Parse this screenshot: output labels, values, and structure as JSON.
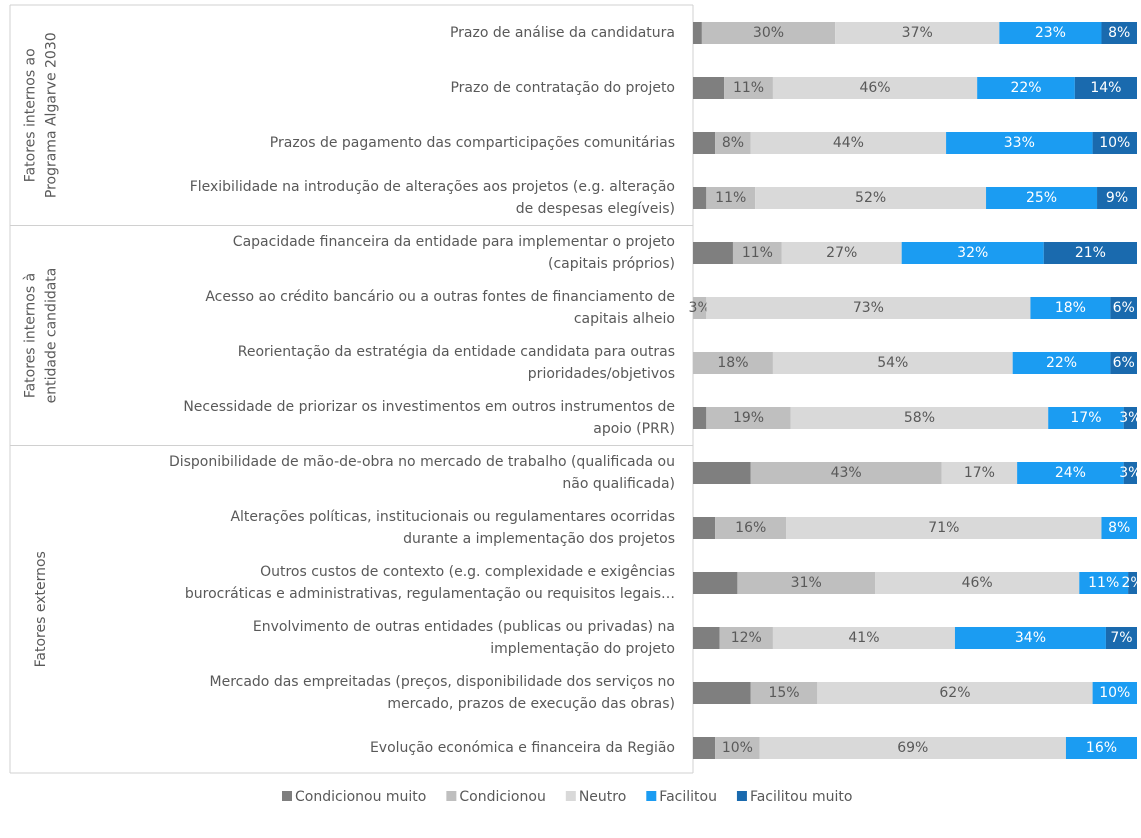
{
  "chart_data": {
    "type": "stacked-bar-horizontal",
    "xlim": [
      0,
      100
    ],
    "groups": [
      [
        "Fatores internos ao",
        "Programa Algarve 2030"
      ],
      [
        "Fatores internos à",
        "entidade candidata"
      ],
      [
        "Fatores externos"
      ]
    ],
    "categories": [
      [
        "Prazo de análise da candidatura"
      ],
      [
        "Prazo de contratação do projeto"
      ],
      [
        "Prazos de pagamento das comparticipações comunitárias"
      ],
      [
        "Flexibilidade na introdução de alterações aos projetos (e.g. alteração",
        "de despesas elegíveis)"
      ],
      [
        "Capacidade financeira da entidade para implementar o projeto",
        "(capitais próprios)"
      ],
      [
        "Acesso ao crédito bancário ou a outras fontes de financiamento de",
        "capitais alheio"
      ],
      [
        "Reorientação da estratégia da entidade candidata para outras",
        "prioridades/objetivos"
      ],
      [
        "Necessidade de priorizar os investimentos em outros instrumentos de",
        "apoio (PRR)"
      ],
      [
        "Disponibilidade de mão-de-obra no mercado de trabalho (qualificada ou",
        "não qualificada)"
      ],
      [
        "Alterações políticas, institucionais ou regulamentares ocorridas",
        "durante a implementação dos projetos"
      ],
      [
        "Outros custos de contexto (e.g. complexidade e exigências",
        "burocráticas e administrativas, regulamentação ou requisitos legais…"
      ],
      [
        "Envolvimento de outras entidades (publicas ou privadas) na",
        "implementação do projeto"
      ],
      [
        "Mercado das empreitadas (preços, disponibilidade dos serviços no",
        "mercado, prazos de execução das obras)"
      ],
      [
        "Evolução económica e financeira da Região"
      ]
    ],
    "series": [
      {
        "name": "Condicionou muito",
        "color": "#7f7f7f",
        "label_color": "#595959",
        "values": [
          2,
          7,
          5,
          3,
          9,
          0,
          0,
          3,
          13,
          5,
          10,
          6,
          13,
          5
        ],
        "value_labels": [
          null,
          null,
          null,
          null,
          null,
          null,
          null,
          null,
          null,
          null,
          null,
          null,
          null,
          null
        ]
      },
      {
        "name": "Condicionou",
        "color": "#bfbfbf",
        "label_color": "#595959",
        "values": [
          30,
          11,
          8,
          11,
          11,
          3,
          18,
          19,
          43,
          16,
          31,
          12,
          15,
          10
        ],
        "value_labels": [
          "30%",
          "11%",
          "8%",
          "11%",
          "11%",
          "3%",
          "18%",
          "19%",
          "43%",
          "16%",
          "31%",
          "12%",
          "15%",
          "10%"
        ]
      },
      {
        "name": "Neutro",
        "color": "#d9d9d9",
        "label_color": "#595959",
        "values": [
          37,
          46,
          44,
          52,
          27,
          73,
          54,
          58,
          17,
          71,
          46,
          41,
          62,
          69
        ],
        "value_labels": [
          "37%",
          "46%",
          "44%",
          "52%",
          "27%",
          "73%",
          "54%",
          "58%",
          "17%",
          "71%",
          "46%",
          "41%",
          "62%",
          "69%"
        ]
      },
      {
        "name": "Facilitou",
        "color": "#1b9cf2",
        "label_color": "#ffffff",
        "values": [
          23,
          22,
          33,
          25,
          32,
          18,
          22,
          17,
          24,
          8,
          11,
          34,
          10,
          16
        ],
        "value_labels": [
          "23%",
          "22%",
          "33%",
          "25%",
          "32%",
          "18%",
          "22%",
          "17%",
          "24%",
          "8%",
          "11%",
          "34%",
          "10%",
          "16%"
        ]
      },
      {
        "name": "Facilitou muito",
        "color": "#1a6aae",
        "label_color": "#ffffff",
        "values": [
          8,
          14,
          10,
          9,
          21,
          6,
          6,
          3,
          3,
          0,
          2,
          7,
          0,
          0
        ],
        "value_labels": [
          "8%",
          "14%",
          "10%",
          "9%",
          "21%",
          "6%",
          "6%",
          "3%",
          "3%",
          null,
          "2%",
          "7%",
          null,
          null
        ]
      }
    ]
  }
}
